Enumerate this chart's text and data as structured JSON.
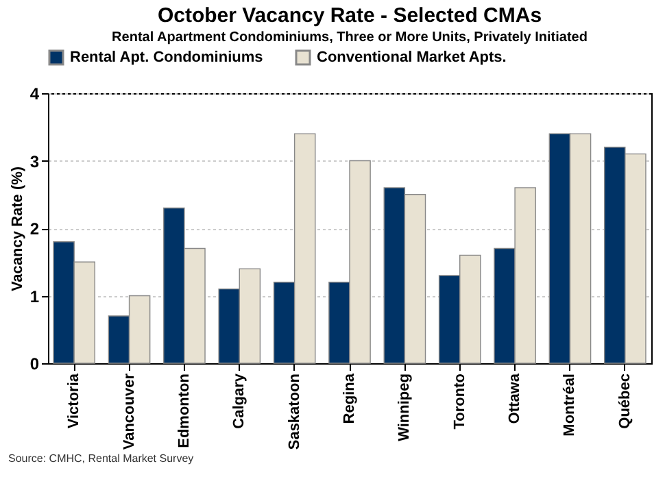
{
  "chart_data": {
    "type": "bar",
    "title": "October Vacancy Rate - Selected CMAs",
    "subtitle": "Rental Apartment Condominiums, Three or More Units, Privately Initiated",
    "ylabel": "Vacancy Rate (%)",
    "categories": [
      "Victoria",
      "Vancouver",
      "Edmonton",
      "Calgary",
      "Saskatoon",
      "Regina",
      "Winnipeg",
      "Toronto",
      "Ottawa",
      "Montréal",
      "Québec"
    ],
    "series": [
      {
        "name": "Rental Apt. Condominiums",
        "color": "#003366",
        "values": [
          1.8,
          0.7,
          2.3,
          1.1,
          1.2,
          1.2,
          2.6,
          1.3,
          1.7,
          3.4,
          3.2
        ]
      },
      {
        "name": "Conventional Market Apts.",
        "color": "#e8e2d2",
        "values": [
          1.5,
          1.0,
          1.7,
          1.4,
          3.4,
          3.0,
          2.5,
          1.6,
          2.6,
          3.4,
          3.1
        ]
      }
    ],
    "ylim": [
      0,
      4
    ],
    "yticks": [
      0,
      1,
      2,
      3,
      4
    ],
    "grid": "y",
    "legend": "top",
    "annotations": [
      "Source: CMHC, Rental Market Survey"
    ]
  }
}
